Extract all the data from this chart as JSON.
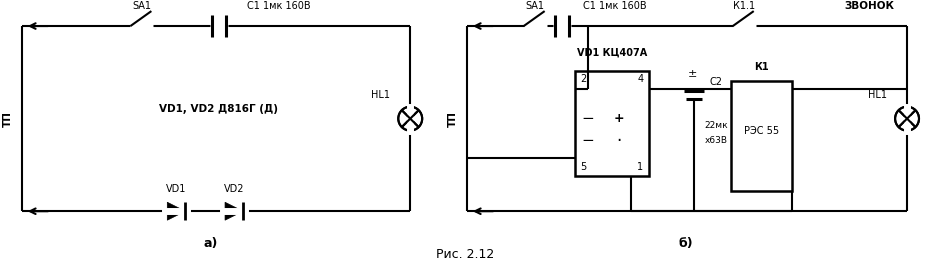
{
  "fig_w": 9.29,
  "fig_h": 2.63,
  "lw": 1.5,
  "lc": "black",
  "caption": "Рис. 2.12",
  "label_a": "а)",
  "label_b": "б)",
  "tp": "ТП",
  "hl1": "HL1",
  "sa1": "SA1",
  "c1_label": "С1 1мк 160В",
  "vd1_a": "VD1",
  "vd2_a": "VD2",
  "vd12_note": "VD1, VD2 Д816Г (Д)",
  "vd1_b_label": "VD1 КЦ407А",
  "k11": "К1.1",
  "zvonok": "ЗВОНОК",
  "c2_label": "С2",
  "c2_val": "22мк",
  "c2_v": "х63В",
  "c2_pm": "±",
  "k1": "К1",
  "rpc": "РЭС 55",
  "pins": [
    "2",
    "4",
    "5",
    "1"
  ],
  "minus_sign": "−",
  "plus_sign": "+"
}
